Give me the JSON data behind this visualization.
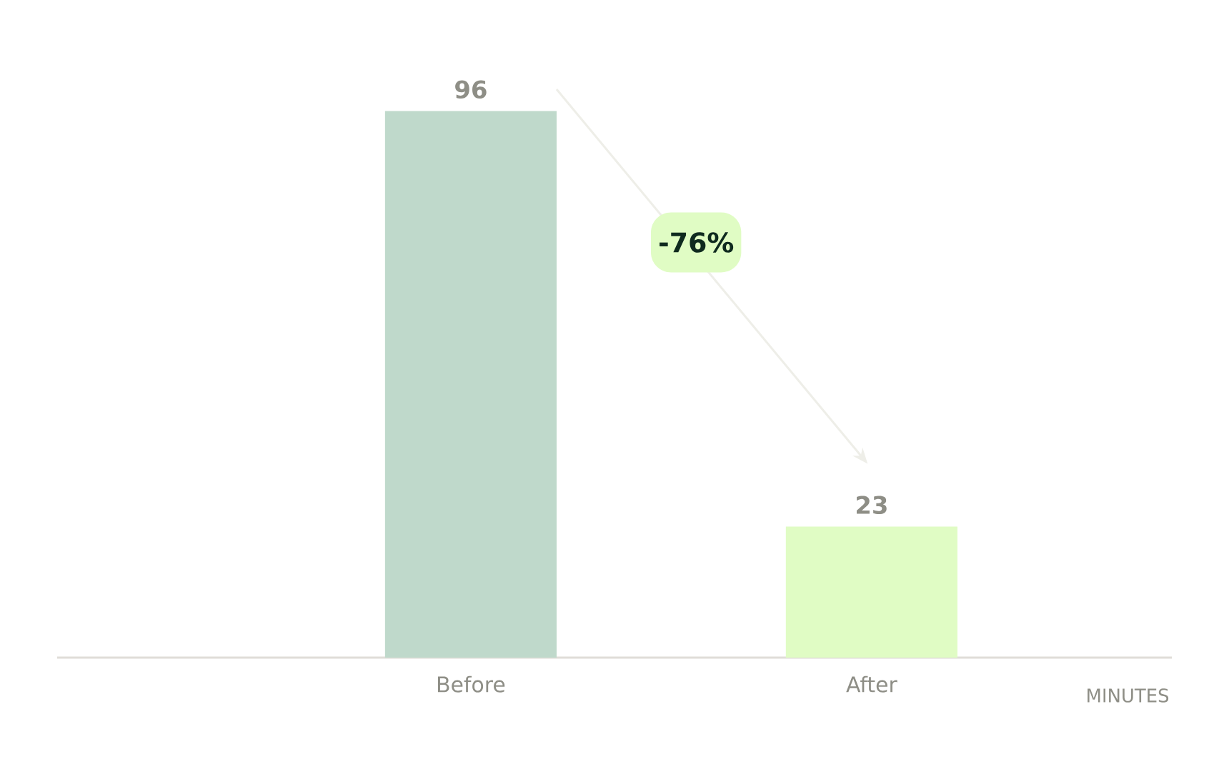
{
  "chart_data": {
    "type": "bar",
    "categories": [
      "Before",
      "After"
    ],
    "colors": [
      "#bfd9cb",
      "#e0fcc4"
    ],
    "values": [
      96,
      23
    ],
    "data_labels": true,
    "annotations": [
      "MINUTES",
      "-76%"
    ]
  }
}
